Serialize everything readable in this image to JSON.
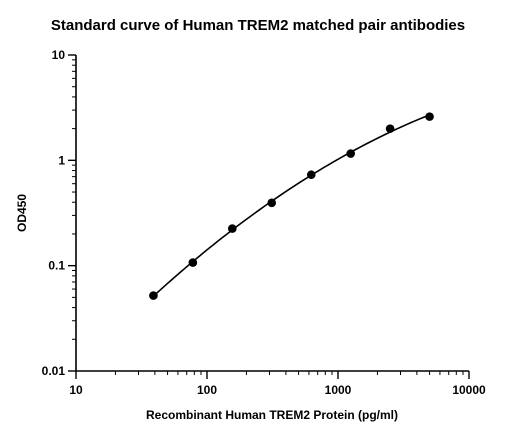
{
  "chart_data": {
    "type": "scatter",
    "title": "Standard curve of Human TREM2 matched pair antibodies",
    "xlabel": "Recombinant Human TREM2 Protein (pg/ml)",
    "ylabel": "OD450",
    "x_scale": "log",
    "y_scale": "log",
    "xlim": [
      10,
      10000
    ],
    "ylim": [
      0.01,
      10
    ],
    "x_ticks": [
      {
        "value": 10,
        "label": "10"
      },
      {
        "value": 100,
        "label": "100"
      },
      {
        "value": 1000,
        "label": "1000"
      },
      {
        "value": 10000,
        "label": "10000"
      }
    ],
    "y_ticks": [
      {
        "value": 0.01,
        "label": "0.01"
      },
      {
        "value": 0.1,
        "label": "0.1"
      },
      {
        "value": 1,
        "label": "1"
      },
      {
        "value": 10,
        "label": "10"
      }
    ],
    "grid": false,
    "series": [
      {
        "x": [
          39,
          78,
          156,
          312,
          625,
          1250,
          2500,
          5000
        ],
        "y": [
          0.052,
          0.107,
          0.225,
          0.395,
          0.73,
          1.16,
          2.0,
          2.6
        ],
        "marker": "circle",
        "fit_line": true,
        "color": "#000000"
      }
    ]
  }
}
